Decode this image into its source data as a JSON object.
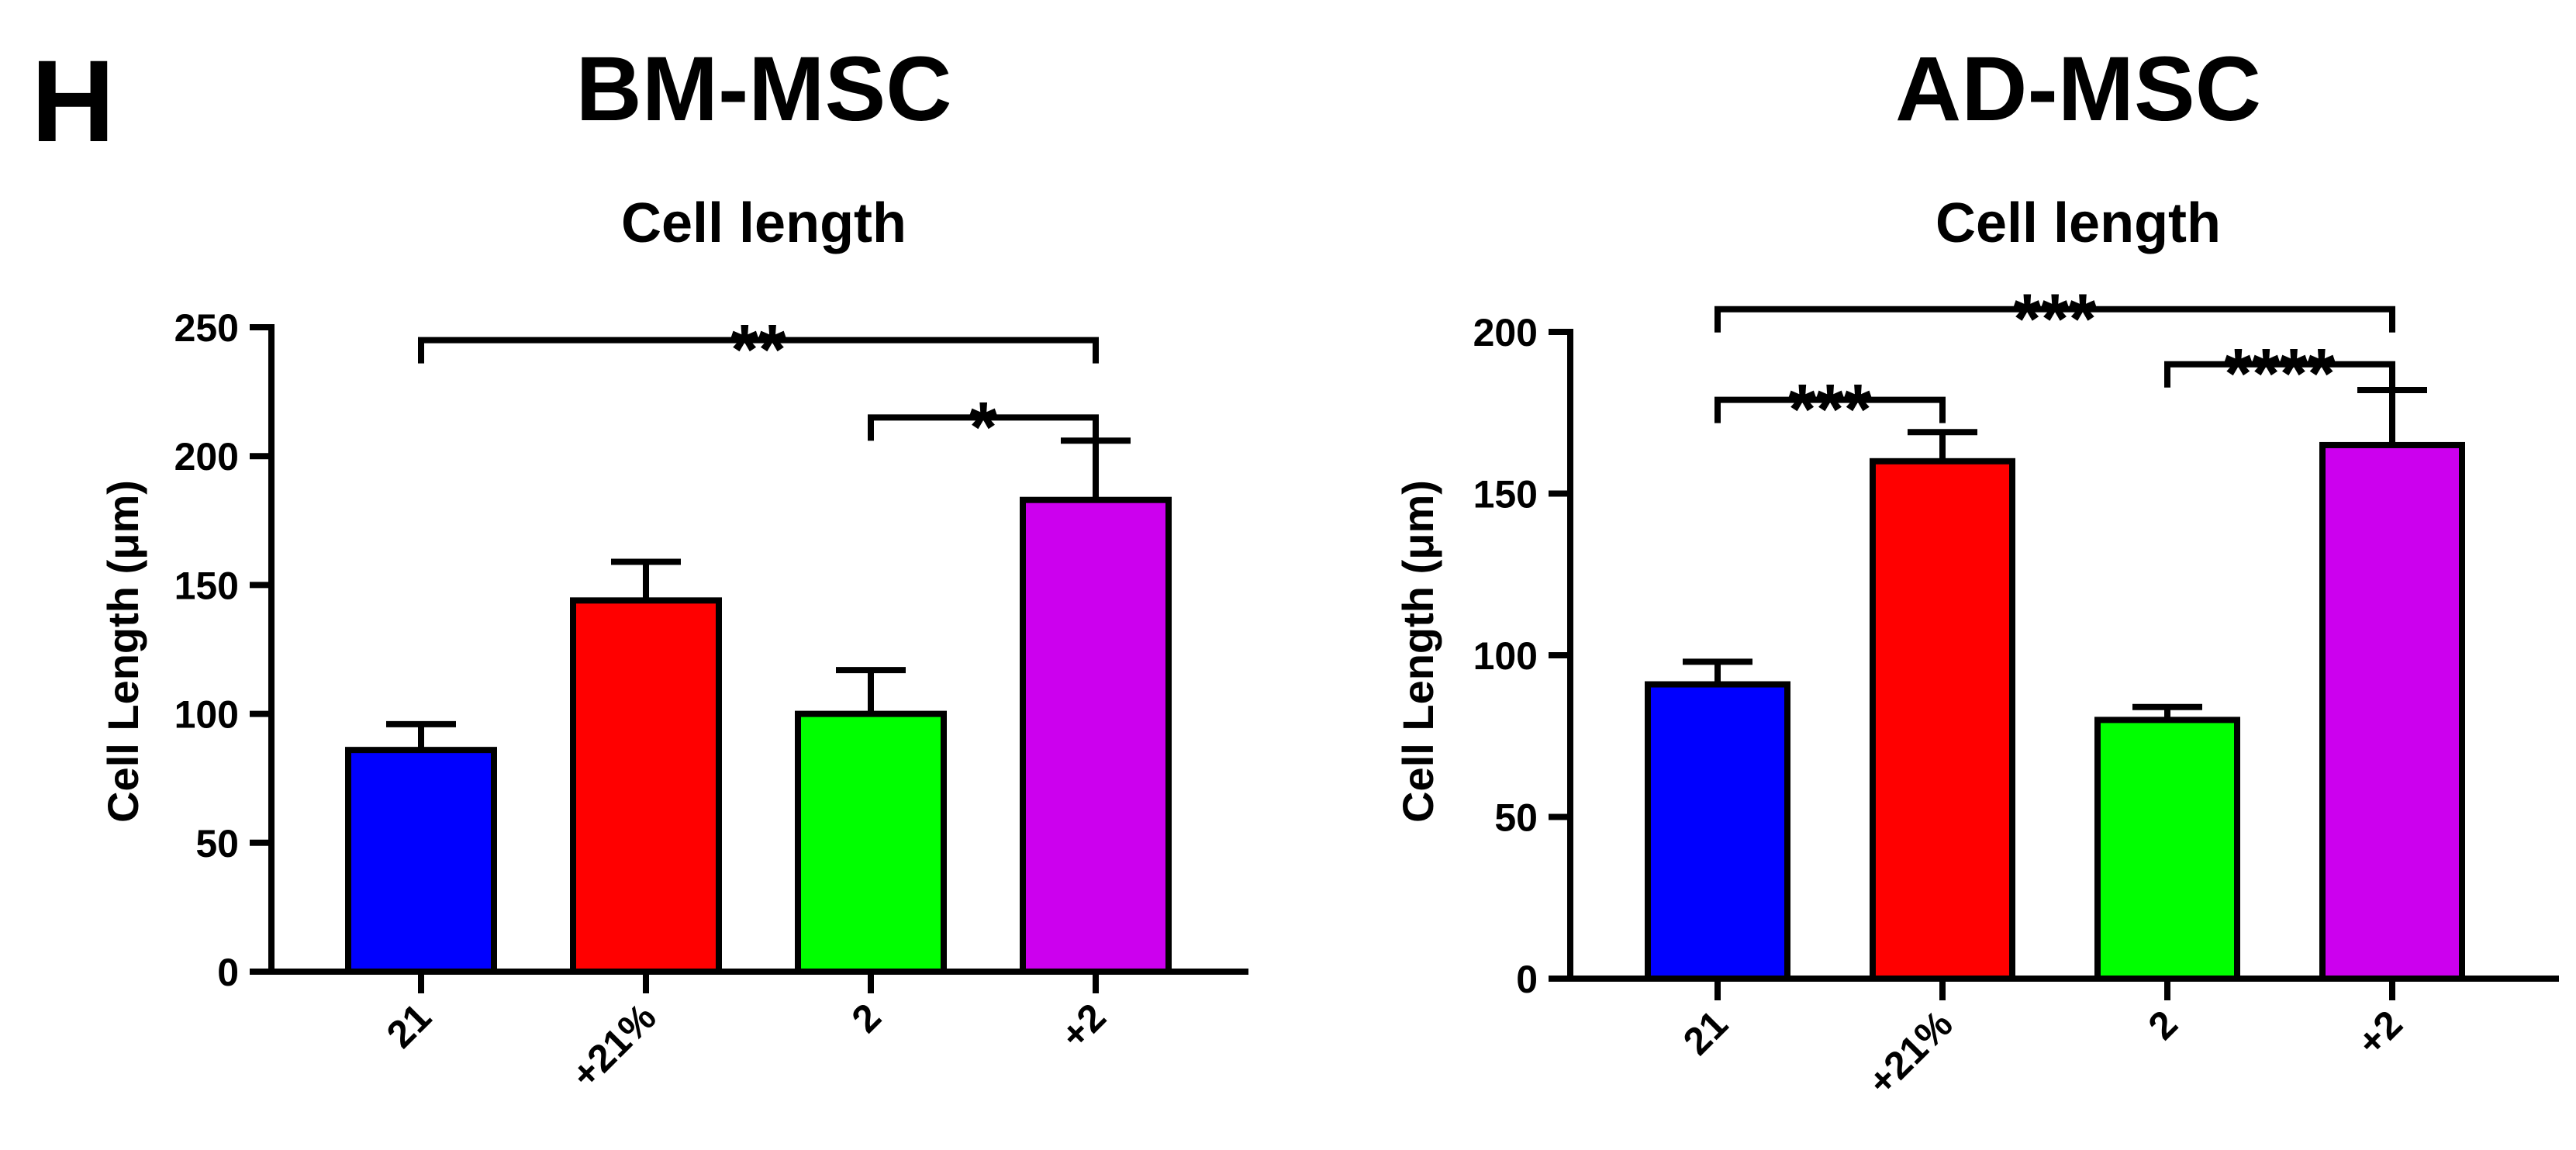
{
  "panel_letter": "H",
  "panels": [
    {
      "panel_title": "BM-MSC",
      "chart_data": {
        "type": "bar",
        "title": "Cell length",
        "xlabel": "",
        "ylabel": "Cell Length (μm)",
        "ylim": [
          0,
          250
        ],
        "yticks": [
          0,
          50,
          100,
          150,
          200,
          250
        ],
        "categories": [
          "21",
          "+21%",
          "2",
          "+2"
        ],
        "values": [
          86,
          144,
          100,
          183
        ],
        "errors": [
          10,
          15,
          17,
          23
        ],
        "colors": [
          "#0000ff",
          "#ff0000",
          "#00ff00",
          "#cc00ee"
        ],
        "significance": [
          {
            "from": 0,
            "to": 3,
            "label": "**",
            "y": 245
          },
          {
            "from": 2,
            "to": 3,
            "label": "*",
            "y": 215
          }
        ]
      }
    },
    {
      "panel_title": "AD-MSC",
      "chart_data": {
        "type": "bar",
        "title": "Cell length",
        "xlabel": "",
        "ylabel": "Cell Length (μm)",
        "ylim": [
          0,
          200
        ],
        "yticks": [
          0,
          50,
          100,
          150,
          200
        ],
        "categories": [
          "21",
          "+21%",
          "2",
          "+2"
        ],
        "values": [
          91,
          160,
          80,
          165
        ],
        "errors": [
          7,
          9,
          4,
          17
        ],
        "colors": [
          "#0000ff",
          "#ff0000",
          "#00ff00",
          "#cc00ee"
        ],
        "significance": [
          {
            "from": 0,
            "to": 3,
            "label": "***",
            "y": 207
          },
          {
            "from": 0,
            "to": 1,
            "label": "***",
            "y": 179
          },
          {
            "from": 2,
            "to": 3,
            "label": "****",
            "y": 190
          }
        ]
      }
    }
  ]
}
